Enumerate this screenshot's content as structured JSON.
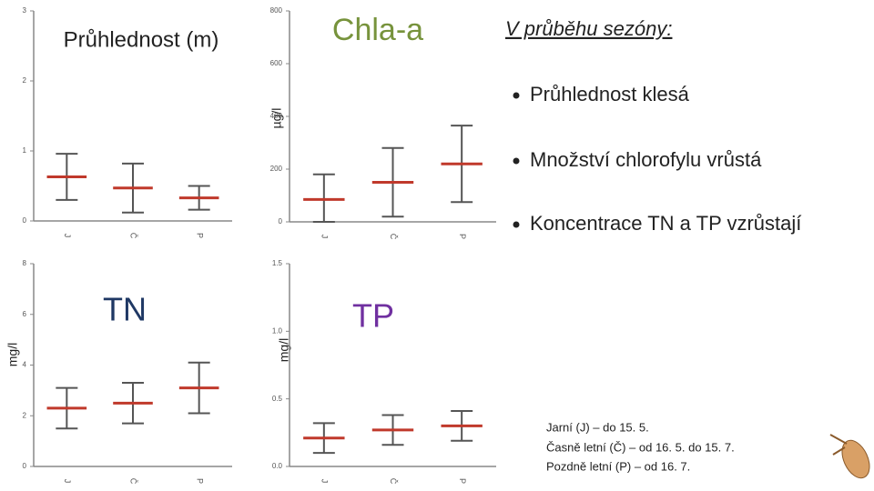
{
  "chart_data": [
    {
      "type": "errorbar",
      "title": "Průhlednost (m)",
      "categories": [
        "J",
        "Č",
        "P"
      ],
      "values": [
        0.63,
        0.47,
        0.33
      ],
      "errors": [
        0.33,
        0.35,
        0.17
      ],
      "ylim": [
        0,
        3
      ],
      "yticks": [
        0,
        1,
        2,
        3
      ],
      "color": "#c0392b",
      "title_color": "#222222"
    },
    {
      "type": "errorbar",
      "title": "Chla-a",
      "y_label": "µg/l",
      "categories": [
        "J",
        "Č",
        "P"
      ],
      "values": [
        85,
        150,
        220
      ],
      "errors": [
        95,
        130,
        145
      ],
      "ylim": [
        0,
        800
      ],
      "yticks": [
        0,
        200,
        400,
        600,
        800
      ],
      "color": "#c0392b",
      "title_color": "#77933c"
    },
    {
      "type": "errorbar",
      "title": "TN",
      "y_label": "mg/l",
      "categories": [
        "J",
        "Č",
        "P"
      ],
      "values": [
        2.3,
        2.5,
        3.1
      ],
      "errors": [
        0.8,
        0.8,
        1.0
      ],
      "ylim": [
        0,
        8
      ],
      "yticks": [
        0,
        2,
        4,
        6,
        8
      ],
      "color": "#c0392b",
      "title_color": "#1f3864"
    },
    {
      "type": "errorbar",
      "title": "TP",
      "y_label": "mg/l",
      "categories": [
        "J",
        "Č",
        "P"
      ],
      "values": [
        0.21,
        0.27,
        0.3
      ],
      "errors": [
        0.11,
        0.11,
        0.11
      ],
      "ylim": [
        0,
        1.5
      ],
      "yticks": [
        {
          "value": 0,
          "label": "0.0"
        },
        0.5,
        {
          "value": 1,
          "label": "1.0"
        },
        1.5
      ],
      "color": "#c0392b",
      "title_color": "#7030a0"
    }
  ],
  "heading": "V průběhu sezóny:",
  "bullets": [
    "Průhlednost klesá",
    "Množství chlorofylu vrůstá",
    "Koncentrace TN a TP vzrůstají"
  ],
  "notes": [
    "Jarní (J) – do 15. 5.",
    "Časně letní (Č) – od 16. 5. do 15. 7.",
    "Pozdně letní (P) – od 16. 7."
  ]
}
